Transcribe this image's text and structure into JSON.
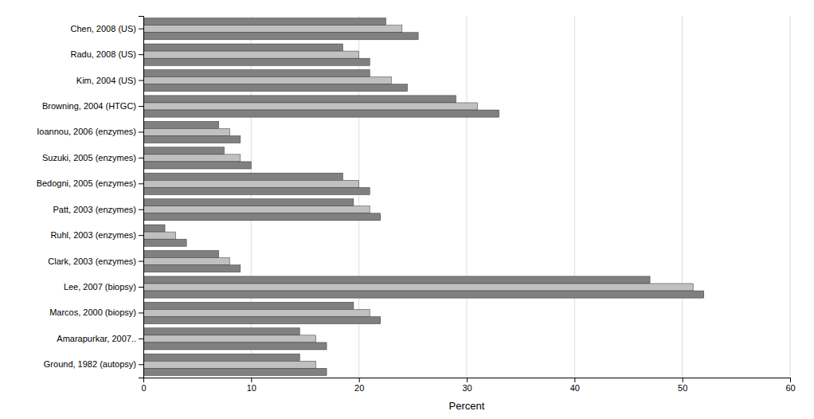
{
  "chart_data": {
    "type": "bar",
    "orientation": "horizontal",
    "categories": [
      "Ground, 1982 (autopsy)",
      "Amarapurkar, 2007..",
      "Marcos, 2000 (biopsy)",
      "Lee, 2007 (biopsy)",
      "Clark, 2003 (enzymes)",
      "Ruhl, 2003 (enzymes)",
      "Patt, 2003 (enzymes)",
      "Bedogni, 2005 (enzymes)",
      "Suzuki, 2005 (enzymes)",
      "Ioannou, 2006 (enzymes)",
      "Browning, 2004 (HTGC)",
      "Kim, 2004 (US)",
      "Radu, 2008 (US)",
      "Chen, 2008 (US)"
    ],
    "series": [
      {
        "color": "#808080",
        "values": [
          14.5,
          14.5,
          19.5,
          47.0,
          7.0,
          2.0,
          19.5,
          18.5,
          7.5,
          7.0,
          29.0,
          21.0,
          18.5,
          22.5
        ]
      },
      {
        "color": "#c0c0c0",
        "values": [
          16.0,
          16.0,
          21.0,
          51.0,
          8.0,
          3.0,
          21.0,
          20.0,
          9.0,
          8.0,
          31.0,
          23.0,
          20.0,
          24.0
        ]
      },
      {
        "color": "#808080",
        "values": [
          17.0,
          17.0,
          22.0,
          52.0,
          9.0,
          4.0,
          22.0,
          21.0,
          10.0,
          9.0,
          33.0,
          24.5,
          21.0,
          25.5
        ]
      }
    ],
    "xlabel": "Percent",
    "xlim": [
      0,
      60
    ],
    "xticks": [
      0,
      10,
      20,
      30,
      40,
      50,
      60
    ],
    "grid": true
  }
}
